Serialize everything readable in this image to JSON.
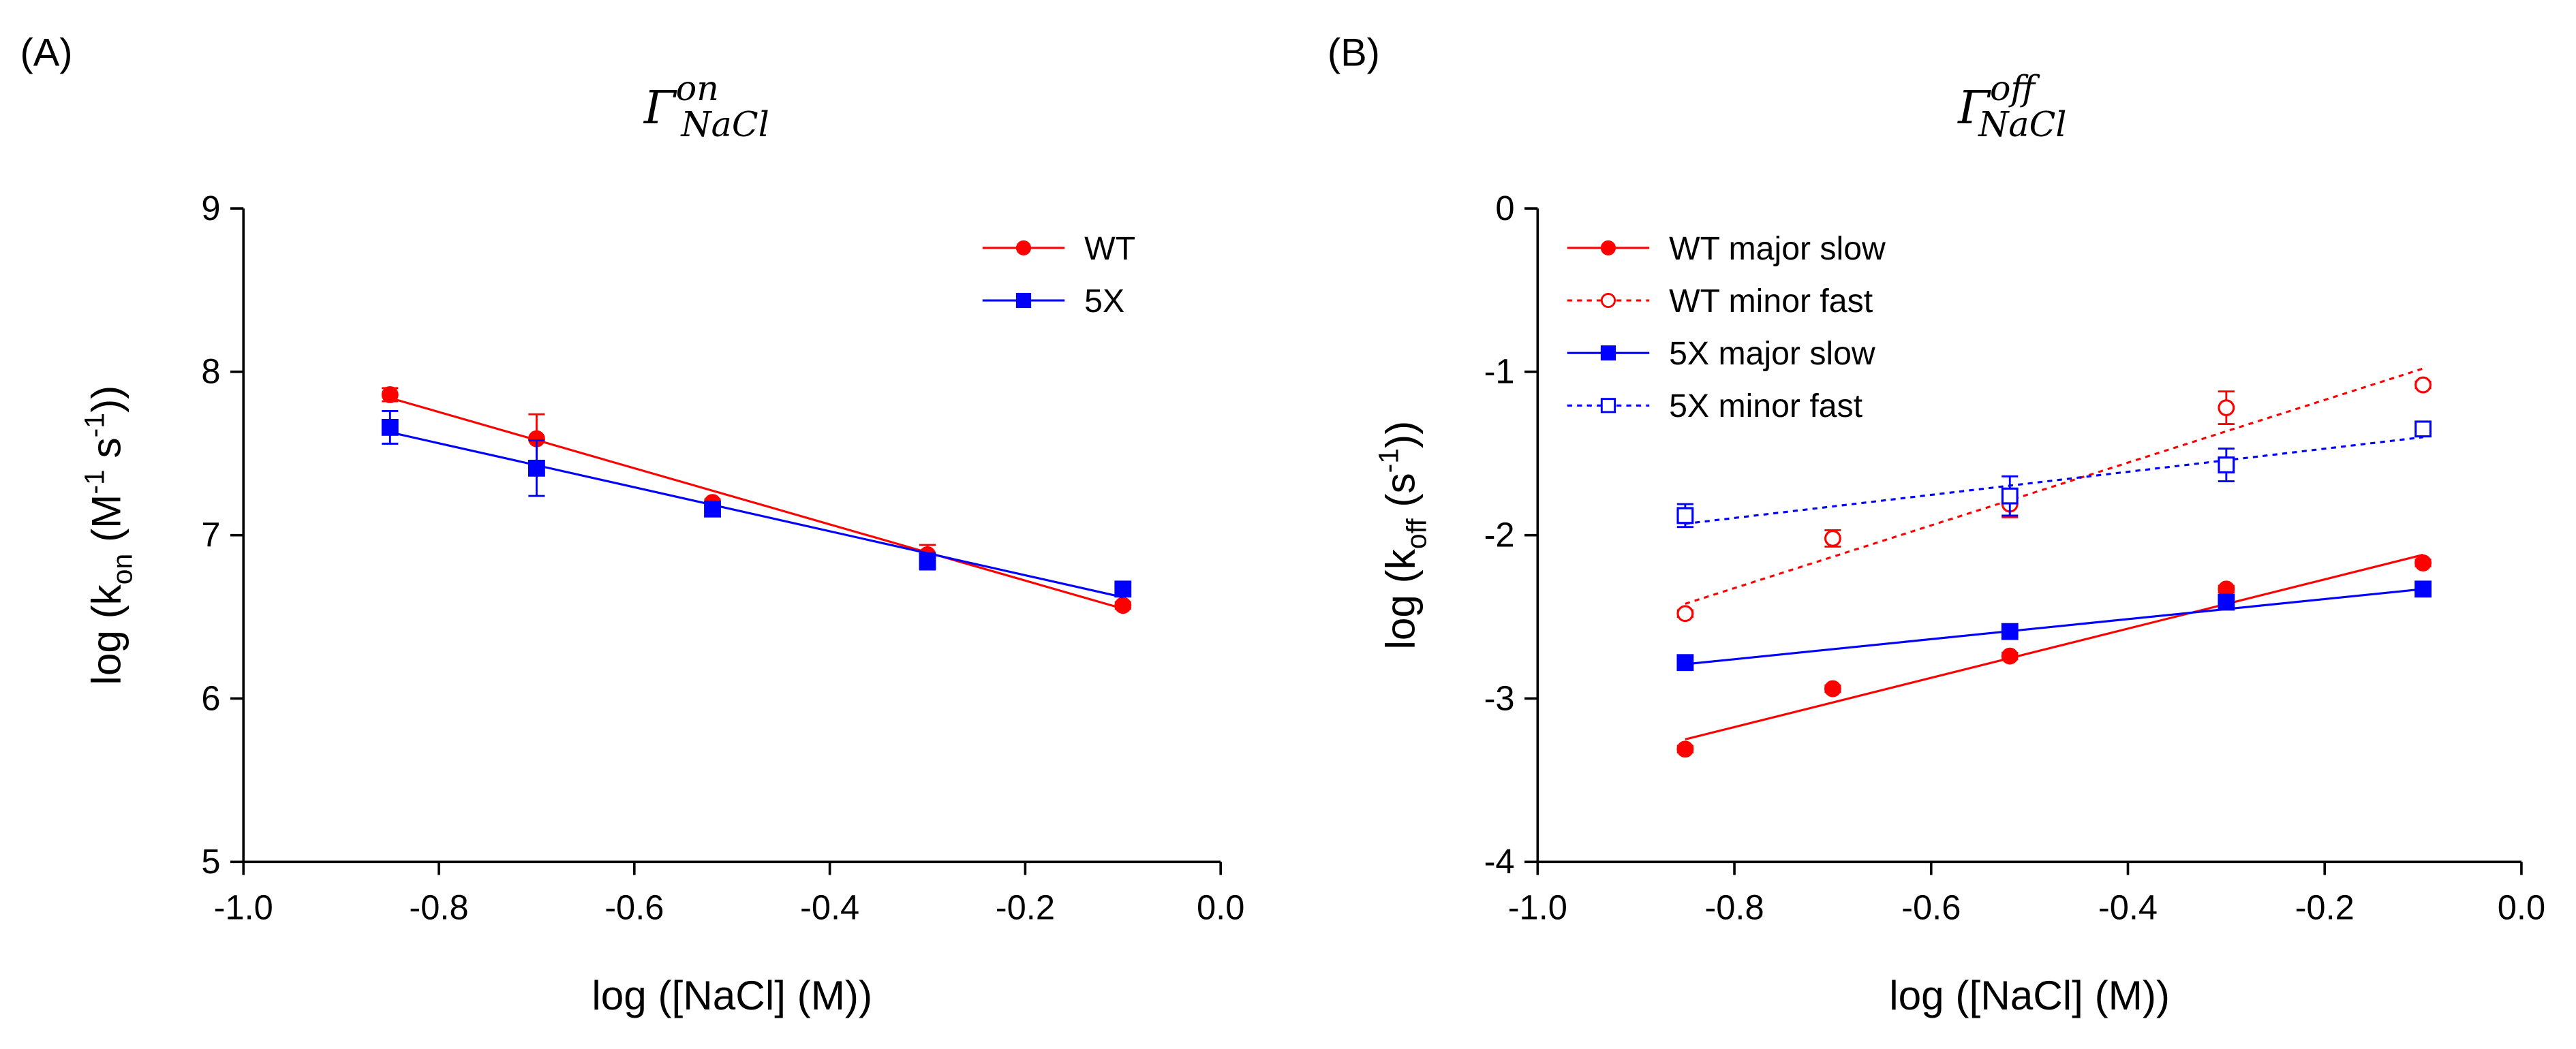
{
  "chart_data": [
    {
      "type": "scatter",
      "panel": "(A)",
      "title": {
        "base": "Γ",
        "sup": "on",
        "sub": "NaCl"
      },
      "xlabel": "log ([NaCl] (M))",
      "ylabel": [
        {
          "text": "log (k"
        },
        {
          "text": "on",
          "style": "sub"
        },
        {
          "text": " (M"
        },
        {
          "text": "-1",
          "style": "sup"
        },
        {
          "text": " s"
        },
        {
          "text": "-1",
          "style": "sup"
        },
        {
          "text": "))"
        }
      ],
      "xlim": [
        -1,
        0
      ],
      "ylim": [
        5,
        9
      ],
      "xticks": [
        {
          "value": -1,
          "label": "-1.0"
        },
        -0.8,
        -0.6,
        -0.4,
        -0.2,
        {
          "value": 0,
          "label": "0.0"
        }
      ],
      "yticks": [
        5,
        6,
        7,
        8,
        9
      ],
      "legend": "upper right",
      "x": [
        -0.85,
        -0.7,
        -0.52,
        -0.3,
        -0.1
      ],
      "series": [
        {
          "name": "WT",
          "color": "#ff0000",
          "marker": "circle",
          "filled": true,
          "line": "solid",
          "values": [
            7.86,
            7.59,
            7.2,
            6.88,
            6.57
          ],
          "errors": [
            0.04,
            0.15,
            0.02,
            0.06,
            0.02
          ],
          "fit": {
            "x": [
              -0.85,
              -0.1
            ],
            "y": [
              7.84,
              6.55
            ]
          }
        },
        {
          "name": "5X",
          "color": "#0000ff",
          "marker": "square",
          "filled": true,
          "line": "solid",
          "values": [
            7.66,
            7.41,
            7.16,
            6.84,
            6.67
          ],
          "errors": [
            0.1,
            0.17,
            0.02,
            0.05,
            0.04
          ],
          "fit": {
            "x": [
              -0.85,
              -0.1
            ],
            "y": [
              7.63,
              6.62
            ]
          }
        }
      ]
    },
    {
      "type": "scatter",
      "panel": "(B)",
      "title": {
        "base": "Γ",
        "sup": "off",
        "sub": "NaCl"
      },
      "xlabel": "log ([NaCl] (M))",
      "ylabel": [
        {
          "text": "log (k"
        },
        {
          "text": "off",
          "style": "sub"
        },
        {
          "text": " (s"
        },
        {
          "text": "-1",
          "style": "sup"
        },
        {
          "text": "))"
        }
      ],
      "xlim": [
        -1,
        0
      ],
      "ylim": [
        -4,
        0
      ],
      "xticks": [
        {
          "value": -1,
          "label": "-1.0"
        },
        -0.8,
        -0.6,
        -0.4,
        -0.2,
        {
          "value": 0,
          "label": "0.0"
        }
      ],
      "yticks": [
        -4,
        -3,
        -2,
        -1,
        0
      ],
      "legend": "upper left",
      "x": [
        -0.85,
        -0.7,
        -0.52,
        -0.3,
        -0.1
      ],
      "series": [
        {
          "name": "WT major slow",
          "color": "#ff0000",
          "marker": "circle",
          "filled": true,
          "line": "solid",
          "values": [
            -3.31,
            -2.94,
            -2.74,
            -2.33,
            -2.17
          ],
          "errors": [
            0.02,
            0.02,
            0.02,
            0.02,
            0.02
          ],
          "fit": {
            "x": [
              -0.85,
              -0.1
            ],
            "y": [
              -3.25,
              -2.12
            ]
          }
        },
        {
          "name": "WT minor fast",
          "color": "#ff0000",
          "marker": "circle",
          "filled": false,
          "line": "dotted",
          "values": [
            -2.48,
            -2.02,
            -1.81,
            -1.22,
            -1.08
          ],
          "errors": [
            0.02,
            0.05,
            0.08,
            0.1,
            0.02
          ],
          "fit": {
            "x": [
              -0.85,
              -0.1
            ],
            "y": [
              -2.42,
              -0.98
            ]
          }
        },
        {
          "name": "5X major slow",
          "color": "#0000ff",
          "marker": "square",
          "filled": true,
          "line": "solid",
          "values": [
            -2.78,
            null,
            -2.59,
            -2.41,
            -2.33
          ],
          "errors": [
            0.02,
            null,
            0.02,
            0.02,
            0.02
          ],
          "fit": {
            "x": [
              -0.85,
              -0.1
            ],
            "y": [
              -2.79,
              -2.33
            ]
          }
        },
        {
          "name": "5X minor fast",
          "color": "#0000ff",
          "marker": "square",
          "filled": false,
          "line": "dotted",
          "values": [
            -1.88,
            null,
            -1.76,
            -1.57,
            -1.35
          ],
          "errors": [
            0.07,
            null,
            0.12,
            0.1,
            0.02
          ],
          "fit": {
            "x": [
              -0.85,
              -0.1
            ],
            "y": [
              -1.93,
              -1.4
            ]
          }
        }
      ]
    }
  ]
}
